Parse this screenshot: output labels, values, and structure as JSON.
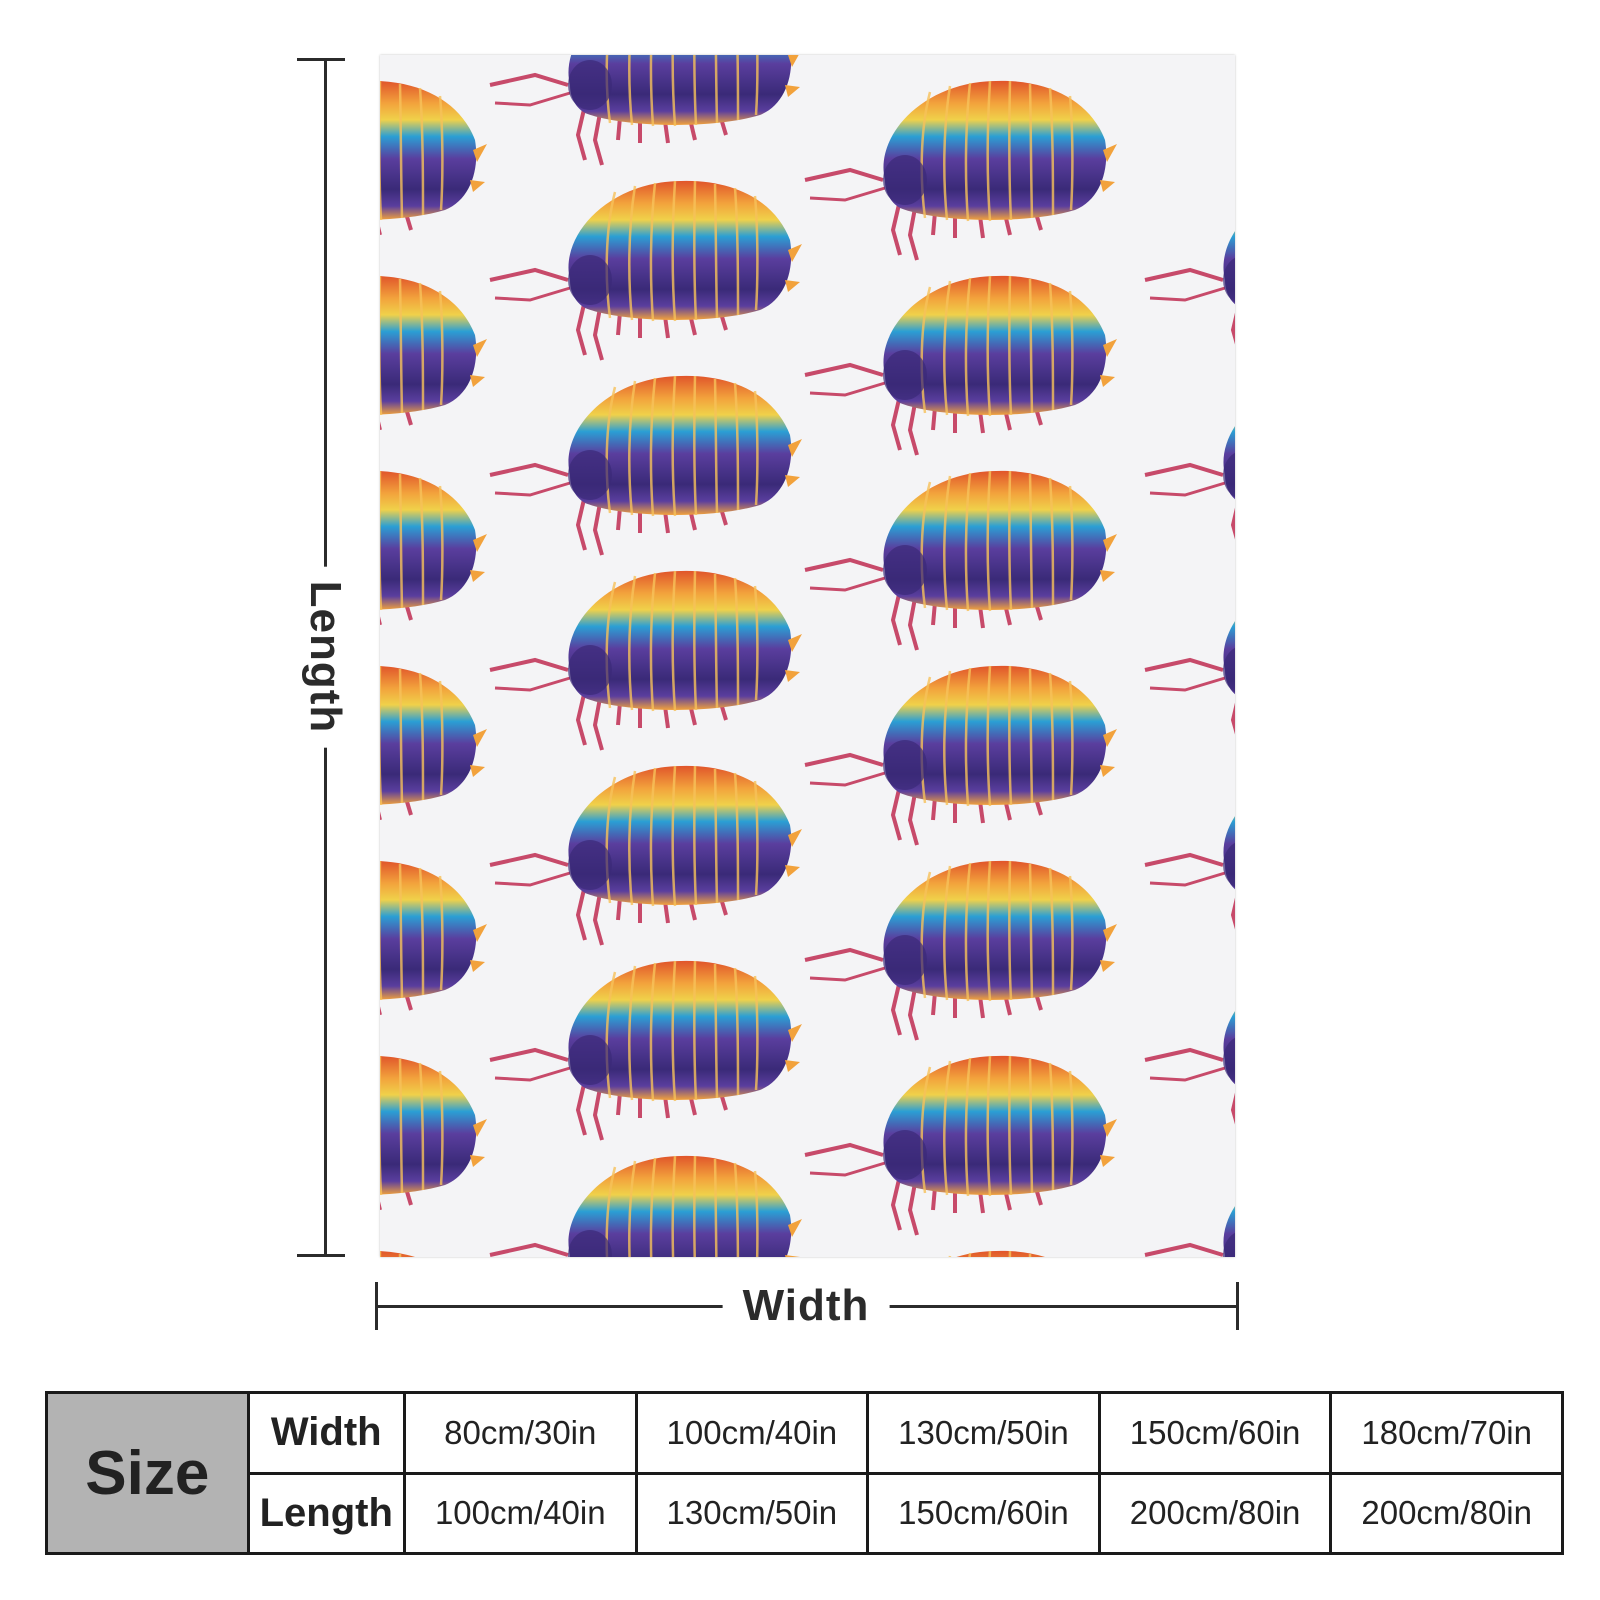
{
  "diagram": {
    "length_label": "Length",
    "width_label": "Width"
  },
  "product": {
    "pattern_motif": "rainbow-pillbug-icon",
    "background_color": "#f4f4f6",
    "motif_colors": [
      "#e0552a",
      "#f2a23c",
      "#f0d14a",
      "#2b9fd4",
      "#5a3e9e",
      "#3a2a78",
      "#c74a6a"
    ]
  },
  "size_table": {
    "header": "Size",
    "rows": [
      {
        "label": "Width",
        "values": [
          "80cm/30in",
          "100cm/40in",
          "130cm/50in",
          "150cm/60in",
          "180cm/70in"
        ]
      },
      {
        "label": "Length",
        "values": [
          "100cm/40in",
          "130cm/50in",
          "150cm/60in",
          "200cm/80in",
          "200cm/80in"
        ]
      }
    ]
  }
}
